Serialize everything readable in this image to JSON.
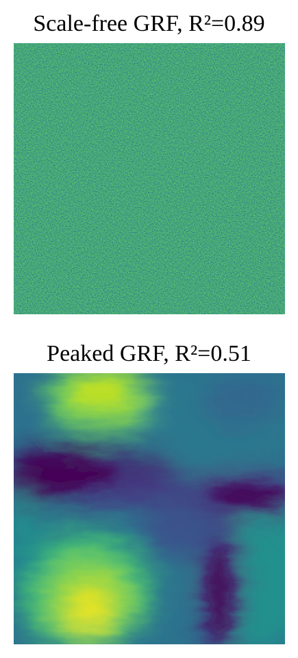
{
  "panels": [
    {
      "title": "Scale-free GRF, R²=0.89",
      "field_type": "scale-free gaussian random field",
      "colormap": "viridis"
    },
    {
      "title": "Peaked GRF, R²=0.51",
      "field_type": "peaked gaussian random field",
      "colormap": "viridis"
    }
  ],
  "colors": {
    "viridis_dark": "#440154",
    "viridis_blue": "#3b528b",
    "viridis_teal": "#21908d",
    "viridis_green": "#5dc863",
    "viridis_yellow": "#fde725"
  }
}
